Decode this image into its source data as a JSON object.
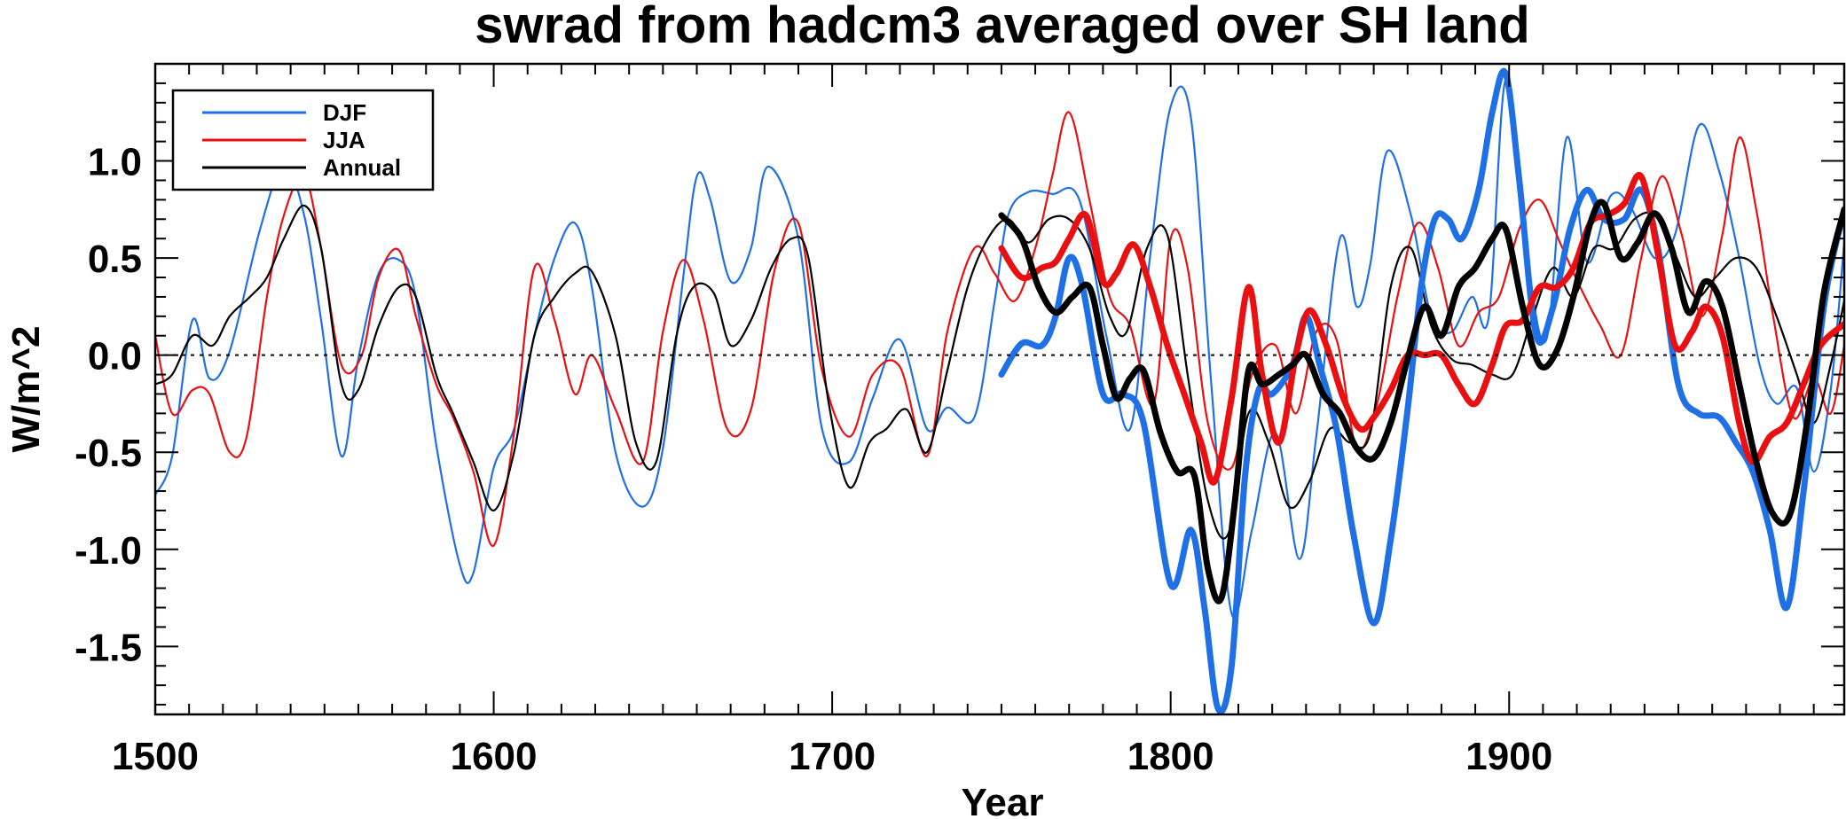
{
  "chart_data": {
    "type": "line",
    "title": "swrad from hadcm3 averaged over SH land",
    "xlabel": "Year",
    "ylabel": "W/m^2",
    "xlim": [
      1500,
      1999
    ],
    "ylim": [
      -1.85,
      1.5
    ],
    "xticks": [
      1500,
      1600,
      1700,
      1800,
      1900
    ],
    "xtick_labels": [
      "1500",
      "1600",
      "1700",
      "1800",
      "1900"
    ],
    "yticks": [
      -1.5,
      -1.0,
      -0.5,
      0.0,
      0.5,
      1.0
    ],
    "ytick_labels": [
      "-1.5",
      "-1.0",
      "-0.5",
      "0.0",
      "0.5",
      "1.0"
    ],
    "zero_line": true,
    "legend": {
      "position": "top-left",
      "entries": [
        {
          "label": "DJF",
          "color": "#1f6fe5"
        },
        {
          "label": "JJA",
          "color": "#e81010"
        },
        {
          "label": "Annual",
          "color": "#000000"
        }
      ]
    },
    "series": [
      {
        "name": "DJF",
        "color": "#1f6fe5",
        "weight": "thin",
        "x": [
          1500,
          1505,
          1511,
          1516,
          1522,
          1531,
          1538,
          1544,
          1549,
          1555,
          1560,
          1566,
          1572,
          1577,
          1583,
          1590,
          1594,
          1600,
          1606,
          1612,
          1618,
          1624,
          1629,
          1636,
          1644,
          1650,
          1656,
          1660,
          1664,
          1670,
          1676,
          1681,
          1690,
          1697,
          1705,
          1712,
          1720,
          1728,
          1734,
          1742,
          1748,
          1752,
          1758,
          1765,
          1773,
          1781,
          1788,
          1794,
          1800,
          1806,
          1812,
          1818,
          1824,
          1831,
          1838,
          1843,
          1850,
          1855,
          1859,
          1864,
          1871,
          1877,
          1883,
          1889,
          1894,
          1899,
          1905,
          1911,
          1917,
          1923,
          1930,
          1936,
          1943,
          1949,
          1956,
          1962,
          1968,
          1974,
          1979,
          1985,
          1990,
          1995,
          1999
        ],
        "y": [
          -0.72,
          -0.52,
          0.18,
          -0.12,
          0.02,
          0.65,
          0.98,
          0.72,
          0.18,
          -0.52,
          -0.02,
          0.42,
          0.49,
          0.3,
          -0.46,
          -1.08,
          -1.12,
          -0.58,
          -0.38,
          0.1,
          0.5,
          0.68,
          0.35,
          -0.5,
          -0.78,
          -0.48,
          0.4,
          0.92,
          0.8,
          0.38,
          0.55,
          0.97,
          0.6,
          -0.38,
          -0.55,
          -0.22,
          0.08,
          -0.38,
          -0.27,
          -0.32,
          0.28,
          0.72,
          0.84,
          0.83,
          0.8,
          0.1,
          -0.38,
          0.52,
          1.28,
          1.22,
          -0.15,
          -1.33,
          -0.9,
          -0.4,
          -1.05,
          -0.42,
          0.6,
          0.25,
          0.47,
          1.05,
          0.72,
          0.2,
          0.12,
          0.3,
          0.2,
          1.42,
          0.55,
          0.08,
          1.12,
          0.48,
          0.82,
          0.76,
          0.5,
          0.62,
          1.18,
          0.95,
          0.5,
          -0.05,
          -0.25,
          -0.17,
          -0.6,
          -0.18,
          0.58
        ]
      },
      {
        "name": "JJA",
        "color": "#e81010",
        "weight": "thin",
        "x": [
          1500,
          1505,
          1511,
          1516,
          1522,
          1527,
          1533,
          1538,
          1544,
          1549,
          1555,
          1561,
          1566,
          1572,
          1577,
          1583,
          1588,
          1594,
          1600,
          1606,
          1612,
          1618,
          1624,
          1629,
          1636,
          1644,
          1650,
          1656,
          1662,
          1669,
          1676,
          1683,
          1690,
          1697,
          1705,
          1712,
          1720,
          1728,
          1734,
          1742,
          1748,
          1754,
          1760,
          1765,
          1770,
          1776,
          1782,
          1788,
          1795,
          1800,
          1805,
          1811,
          1818,
          1824,
          1831,
          1837,
          1843,
          1849,
          1855,
          1861,
          1867,
          1873,
          1879,
          1885,
          1891,
          1897,
          1903,
          1909,
          1915,
          1921,
          1927,
          1933,
          1939,
          1945,
          1951,
          1957,
          1963,
          1968,
          1973,
          1978,
          1984,
          1990,
          1995,
          1999
        ],
        "y": [
          0.1,
          -0.3,
          -0.18,
          -0.2,
          -0.5,
          -0.42,
          0.3,
          0.72,
          0.92,
          0.55,
          -0.05,
          0.0,
          0.4,
          0.54,
          0.2,
          -0.15,
          -0.32,
          -0.6,
          -0.98,
          -0.4,
          0.45,
          0.18,
          -0.2,
          0.0,
          -0.28,
          -0.55,
          0.12,
          0.49,
          0.18,
          -0.38,
          -0.28,
          0.44,
          0.68,
          -0.08,
          -0.42,
          -0.1,
          -0.06,
          -0.52,
          0.12,
          0.55,
          0.42,
          0.28,
          0.55,
          0.92,
          1.25,
          0.8,
          0.3,
          0.15,
          -0.25,
          0.6,
          0.45,
          -0.35,
          -0.58,
          -0.1,
          0.05,
          -0.3,
          0.12,
          0.08,
          -0.48,
          -0.25,
          0.3,
          0.68,
          0.45,
          0.05,
          0.22,
          0.3,
          0.65,
          0.8,
          0.58,
          0.35,
          0.15,
          0.0,
          0.5,
          0.92,
          0.62,
          0.2,
          0.62,
          1.12,
          0.75,
          0.2,
          -0.32,
          -0.12,
          -0.3,
          0.05
        ]
      },
      {
        "name": "Annual",
        "color": "#000000",
        "weight": "thin",
        "x": [
          1500,
          1505,
          1511,
          1517,
          1522,
          1528,
          1533,
          1538,
          1544,
          1549,
          1555,
          1560,
          1566,
          1572,
          1577,
          1583,
          1588,
          1594,
          1600,
          1606,
          1612,
          1618,
          1624,
          1629,
          1636,
          1642,
          1648,
          1654,
          1659,
          1665,
          1670,
          1676,
          1682,
          1688,
          1693,
          1699,
          1705,
          1711,
          1716,
          1722,
          1728,
          1734,
          1740,
          1746,
          1752,
          1758,
          1764,
          1770,
          1776,
          1782,
          1787,
          1793,
          1799,
          1805,
          1811,
          1817,
          1823,
          1829,
          1835,
          1841,
          1847,
          1853,
          1859,
          1865,
          1871,
          1877,
          1883,
          1889,
          1895,
          1901,
          1907,
          1913,
          1919,
          1925,
          1931,
          1937,
          1943,
          1949,
          1955,
          1961,
          1967,
          1973,
          1979,
          1985,
          1990,
          1995,
          1999
        ],
        "y": [
          -0.15,
          -0.1,
          0.1,
          0.05,
          0.2,
          0.3,
          0.4,
          0.6,
          0.77,
          0.55,
          -0.15,
          -0.18,
          0.15,
          0.35,
          0.3,
          -0.1,
          -0.3,
          -0.55,
          -0.8,
          -0.5,
          0.1,
          0.3,
          0.42,
          0.43,
          0.1,
          -0.45,
          -0.55,
          0.1,
          0.35,
          0.32,
          0.05,
          0.18,
          0.45,
          0.6,
          0.5,
          -0.25,
          -0.68,
          -0.45,
          -0.38,
          -0.28,
          -0.5,
          -0.08,
          0.35,
          0.6,
          0.7,
          0.58,
          0.7,
          0.7,
          0.55,
          0.2,
          0.12,
          0.55,
          0.62,
          -0.1,
          -0.75,
          -0.92,
          -0.3,
          -0.45,
          -0.78,
          -0.65,
          -0.38,
          -0.45,
          -0.4,
          0.35,
          0.55,
          0.15,
          -0.02,
          -0.05,
          -0.1,
          -0.1,
          0.2,
          0.45,
          0.3,
          0.55,
          0.55,
          0.7,
          0.72,
          0.52,
          0.3,
          0.4,
          0.5,
          0.45,
          0.2,
          -0.1,
          -0.35,
          -0.05,
          0.28
        ]
      },
      {
        "name": "DJF (1750-2000)",
        "color": "#1f6fe5",
        "weight": "thick",
        "x": [
          1750,
          1756,
          1762,
          1766,
          1770,
          1774,
          1780,
          1786,
          1792,
          1800,
          1806,
          1810,
          1814,
          1818,
          1822,
          1826,
          1830,
          1836,
          1840,
          1844,
          1849,
          1854,
          1860,
          1865,
          1870,
          1874,
          1878,
          1882,
          1886,
          1891,
          1895,
          1899,
          1903,
          1908,
          1913,
          1918,
          1923,
          1928,
          1934,
          1939,
          1944,
          1950,
          1956,
          1962,
          1967,
          1972,
          1977,
          1982,
          1987,
          1993,
          1999
        ],
        "y": [
          -0.1,
          0.06,
          0.05,
          0.2,
          0.5,
          0.35,
          -0.2,
          -0.2,
          -0.35,
          -1.18,
          -0.9,
          -1.3,
          -1.82,
          -1.6,
          -0.62,
          -0.18,
          -0.2,
          -0.05,
          0.2,
          -0.05,
          -0.38,
          -0.92,
          -1.38,
          -0.95,
          -0.28,
          0.35,
          0.7,
          0.7,
          0.6,
          0.85,
          1.25,
          1.45,
          0.9,
          0.1,
          0.25,
          0.65,
          0.85,
          0.7,
          0.7,
          0.85,
          0.55,
          -0.15,
          -0.3,
          -0.32,
          -0.45,
          -0.6,
          -0.9,
          -1.3,
          -0.7,
          0.25,
          0.75
        ]
      },
      {
        "name": "JJA (1750-2000)",
        "color": "#e81010",
        "weight": "thick",
        "x": [
          1750,
          1756,
          1762,
          1766,
          1770,
          1775,
          1780,
          1784,
          1789,
          1794,
          1799,
          1804,
          1809,
          1813,
          1818,
          1823,
          1827,
          1832,
          1837,
          1841,
          1846,
          1851,
          1856,
          1860,
          1865,
          1870,
          1875,
          1880,
          1885,
          1890,
          1895,
          1899,
          1904,
          1909,
          1914,
          1919,
          1924,
          1929,
          1934,
          1939,
          1944,
          1949,
          1954,
          1958,
          1963,
          1968,
          1972,
          1977,
          1982,
          1987,
          1992,
          1999
        ],
        "y": [
          0.55,
          0.4,
          0.45,
          0.48,
          0.6,
          0.72,
          0.38,
          0.42,
          0.57,
          0.35,
          0.05,
          -0.2,
          -0.45,
          -0.65,
          -0.22,
          0.35,
          -0.1,
          -0.45,
          0.0,
          0.23,
          0.05,
          -0.22,
          -0.38,
          -0.32,
          -0.18,
          0.0,
          0.0,
          0.0,
          -0.15,
          -0.25,
          -0.05,
          0.15,
          0.18,
          0.35,
          0.35,
          0.45,
          0.68,
          0.72,
          0.78,
          0.92,
          0.52,
          0.05,
          0.12,
          0.25,
          0.1,
          -0.35,
          -0.55,
          -0.42,
          -0.35,
          -0.15,
          0.05,
          0.16
        ]
      },
      {
        "name": "Annual (1750-2000)",
        "color": "#000000",
        "weight": "thick",
        "x": [
          1750,
          1756,
          1761,
          1766,
          1771,
          1776,
          1780,
          1784,
          1788,
          1792,
          1797,
          1802,
          1807,
          1811,
          1815,
          1819,
          1823,
          1827,
          1832,
          1836,
          1840,
          1845,
          1850,
          1855,
          1860,
          1865,
          1870,
          1875,
          1880,
          1885,
          1890,
          1895,
          1899,
          1904,
          1909,
          1914,
          1919,
          1924,
          1928,
          1933,
          1938,
          1943,
          1948,
          1953,
          1958,
          1963,
          1968,
          1973,
          1978,
          1983,
          1988,
          1993,
          1999
        ],
        "y": [
          0.72,
          0.6,
          0.35,
          0.22,
          0.3,
          0.35,
          0.05,
          -0.22,
          -0.12,
          -0.08,
          -0.4,
          -0.6,
          -0.62,
          -1.1,
          -1.25,
          -0.75,
          -0.08,
          -0.15,
          -0.1,
          -0.05,
          0.0,
          -0.2,
          -0.3,
          -0.48,
          -0.53,
          -0.35,
          -0.02,
          0.25,
          0.1,
          0.35,
          0.45,
          0.6,
          0.65,
          0.25,
          -0.05,
          0.02,
          0.3,
          0.68,
          0.78,
          0.5,
          0.58,
          0.73,
          0.55,
          0.22,
          0.38,
          0.25,
          -0.15,
          -0.55,
          -0.82,
          -0.82,
          -0.35,
          0.32,
          0.75
        ]
      }
    ]
  }
}
